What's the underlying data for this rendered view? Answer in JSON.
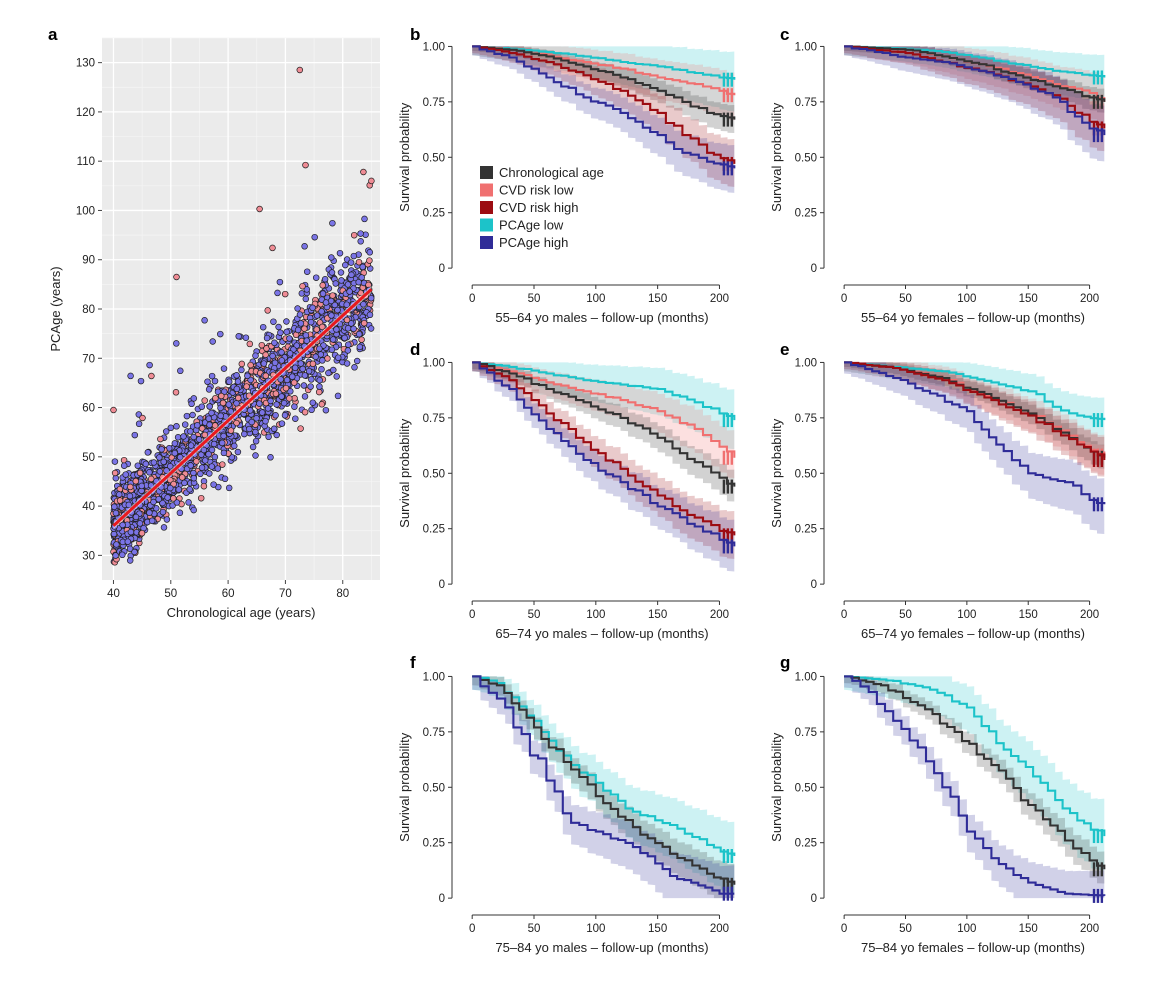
{
  "colors": {
    "chronological": "#333333",
    "cvd_low": "#f07070",
    "cvd_high": "#9c0c12",
    "pcage_low": "#1cc3c9",
    "pcage_high": "#2f2c98",
    "scatter_high": "#7a74e6",
    "scatter_low": "#ef8c95",
    "regression": "#e8191e",
    "panel_bg": "#ebebeb"
  },
  "legend": [
    {
      "key": "chronological",
      "label": "Chronological age"
    },
    {
      "key": "cvd_low",
      "label": "CVD risk low"
    },
    {
      "key": "cvd_high",
      "label": "CVD risk high"
    },
    {
      "key": "pcage_low",
      "label": "PCAge low"
    },
    {
      "key": "pcage_high",
      "label": "PCAge high"
    }
  ],
  "chart_data": [
    {
      "id": "a",
      "letter": "a",
      "type": "scatter",
      "xlabel": "Chronological age (years)",
      "ylabel": "PCAge (years)",
      "xlim": [
        38,
        86.5
      ],
      "ylim": [
        25,
        135
      ],
      "xticks": [
        "40",
        "50",
        "60",
        "70",
        "80"
      ],
      "yticks": [
        "30",
        "40",
        "50",
        "60",
        "70",
        "80",
        "90",
        "100",
        "110",
        "120",
        "130"
      ],
      "regression": {
        "x": [
          40,
          85
        ],
        "y": [
          36,
          84
        ]
      },
      "points": {
        "n": 2200,
        "x_range": [
          40,
          85
        ],
        "trend": {
          "intercept": -6.7,
          "slope": 1.067
        },
        "groups": [
          "scatter_high",
          "scatter_low"
        ],
        "outliers": [
          [
            72.5,
            128.5
          ],
          [
            73.5,
            109.2
          ],
          [
            83.6,
            107.8
          ],
          [
            85,
            106
          ],
          [
            65.5,
            100.3
          ],
          [
            51,
            86.5
          ],
          [
            40,
            59.5
          ]
        ]
      }
    },
    {
      "id": "b",
      "letter": "b",
      "type": "line",
      "xlabel": "55–64 yo males – follow-up (months)",
      "ylabel": "Survival probability",
      "xlim": [
        -5,
        215
      ],
      "ylim": [
        -0.04,
        1.02
      ],
      "xticks": [
        "0",
        "50",
        "100",
        "150",
        "200"
      ],
      "yticks": [
        "0",
        "0.25",
        "0.50",
        "0.75",
        "1.00"
      ],
      "show_legend": true,
      "series": [
        {
          "key": "pcage_low",
          "x": [
            0,
            30,
            60,
            90,
            120,
            150,
            180,
            200,
            212
          ],
          "y": [
            1.0,
            0.99,
            0.975,
            0.955,
            0.93,
            0.91,
            0.88,
            0.86,
            0.85
          ],
          "band": [
            0.04,
            0.15
          ]
        },
        {
          "key": "cvd_low",
          "x": [
            0,
            30,
            60,
            90,
            120,
            150,
            180,
            200,
            212
          ],
          "y": [
            1.0,
            0.985,
            0.96,
            0.93,
            0.9,
            0.86,
            0.83,
            0.8,
            0.78
          ],
          "band": [
            0.04,
            0.12
          ]
        },
        {
          "key": "chronological",
          "x": [
            0,
            30,
            60,
            90,
            120,
            150,
            170,
            190,
            212
          ],
          "y": [
            1.0,
            0.985,
            0.955,
            0.91,
            0.86,
            0.8,
            0.75,
            0.7,
            0.67
          ],
          "band": [
            0.02,
            0.07
          ]
        },
        {
          "key": "cvd_high",
          "x": [
            0,
            30,
            60,
            90,
            120,
            150,
            170,
            190,
            212
          ],
          "y": [
            1.0,
            0.97,
            0.93,
            0.87,
            0.8,
            0.7,
            0.6,
            0.52,
            0.47
          ],
          "band": [
            0.03,
            0.12
          ]
        },
        {
          "key": "pcage_high",
          "x": [
            0,
            30,
            60,
            90,
            120,
            150,
            170,
            190,
            212
          ],
          "y": [
            1.0,
            0.95,
            0.86,
            0.77,
            0.7,
            0.6,
            0.52,
            0.48,
            0.45
          ],
          "band": [
            0.04,
            0.12
          ]
        }
      ]
    },
    {
      "id": "c",
      "letter": "c",
      "type": "line",
      "xlabel": "55–64 yo females – follow-up (months)",
      "ylabel": "Survival probability",
      "xlim": [
        -5,
        215
      ],
      "ylim": [
        -0.04,
        1.02
      ],
      "xticks": [
        "0",
        "50",
        "100",
        "150",
        "200"
      ],
      "yticks": [
        "0",
        "0.25",
        "0.50",
        "0.75",
        "1.00"
      ],
      "show_legend": false,
      "series": [
        {
          "key": "pcage_low",
          "x": [
            0,
            50,
            80,
            110,
            140,
            170,
            200,
            212
          ],
          "y": [
            1.0,
            0.99,
            0.975,
            0.95,
            0.92,
            0.89,
            0.87,
            0.86
          ],
          "band": [
            0.04,
            0.12
          ]
        },
        {
          "key": "cvd_low",
          "x": [
            0,
            50,
            80,
            110,
            140,
            170,
            200,
            212
          ],
          "y": [
            1.0,
            0.985,
            0.955,
            0.92,
            0.88,
            0.83,
            0.79,
            0.75
          ],
          "band": [
            0.04,
            0.12
          ]
        },
        {
          "key": "chronological",
          "x": [
            0,
            50,
            80,
            110,
            140,
            170,
            200,
            212
          ],
          "y": [
            1.0,
            0.985,
            0.955,
            0.92,
            0.87,
            0.82,
            0.77,
            0.75
          ],
          "band": [
            0.02,
            0.06
          ]
        },
        {
          "key": "cvd_high",
          "x": [
            0,
            50,
            80,
            110,
            140,
            170,
            200,
            212
          ],
          "y": [
            1.0,
            0.97,
            0.93,
            0.89,
            0.84,
            0.78,
            0.66,
            0.63
          ],
          "band": [
            0.03,
            0.12
          ]
        },
        {
          "key": "pcage_high",
          "x": [
            0,
            50,
            80,
            110,
            140,
            170,
            200,
            212
          ],
          "y": [
            1.0,
            0.95,
            0.93,
            0.89,
            0.84,
            0.77,
            0.63,
            0.6
          ],
          "band": [
            0.04,
            0.14
          ]
        }
      ]
    },
    {
      "id": "d",
      "letter": "d",
      "type": "line",
      "xlabel": "65–74 yo males – follow-up (months)",
      "ylabel": "Survival probability",
      "xlim": [
        -5,
        215
      ],
      "ylim": [
        -0.04,
        1.02
      ],
      "xticks": [
        "0",
        "50",
        "100",
        "150",
        "200"
      ],
      "yticks": [
        "0",
        "0.25",
        "0.50",
        "0.75",
        "1.00"
      ],
      "show_legend": false,
      "series": [
        {
          "key": "pcage_low",
          "x": [
            0,
            30,
            60,
            90,
            120,
            150,
            180,
            200,
            212
          ],
          "y": [
            1.0,
            0.98,
            0.95,
            0.92,
            0.9,
            0.88,
            0.82,
            0.77,
            0.74
          ],
          "band": [
            0.04,
            0.15
          ]
        },
        {
          "key": "cvd_low",
          "x": [
            0,
            30,
            60,
            90,
            120,
            150,
            180,
            200,
            212
          ],
          "y": [
            1.0,
            0.96,
            0.91,
            0.87,
            0.83,
            0.78,
            0.7,
            0.62,
            0.57
          ],
          "band": [
            0.04,
            0.12
          ]
        },
        {
          "key": "chronological",
          "x": [
            0,
            30,
            60,
            90,
            120,
            150,
            180,
            200,
            212
          ],
          "y": [
            1.0,
            0.95,
            0.88,
            0.82,
            0.75,
            0.66,
            0.55,
            0.48,
            0.44
          ],
          "band": [
            0.03,
            0.08
          ]
        },
        {
          "key": "cvd_high",
          "x": [
            0,
            30,
            60,
            90,
            120,
            150,
            180,
            200,
            212
          ],
          "y": [
            1.0,
            0.92,
            0.77,
            0.64,
            0.52,
            0.4,
            0.3,
            0.24,
            0.22
          ],
          "band": [
            0.04,
            0.12
          ]
        },
        {
          "key": "pcage_high",
          "x": [
            0,
            30,
            60,
            90,
            120,
            150,
            180,
            200,
            212
          ],
          "y": [
            1.0,
            0.88,
            0.7,
            0.56,
            0.46,
            0.35,
            0.26,
            0.2,
            0.17
          ],
          "band": [
            0.04,
            0.13
          ]
        }
      ]
    },
    {
      "id": "e",
      "letter": "e",
      "type": "line",
      "xlabel": "65–74 yo females – follow-up (months)",
      "ylabel": "Survival probability",
      "xlim": [
        -5,
        215
      ],
      "ylim": [
        -0.04,
        1.02
      ],
      "xticks": [
        "0",
        "50",
        "100",
        "150",
        "200"
      ],
      "yticks": [
        "0",
        "0.25",
        "0.50",
        "0.75",
        "1.00"
      ],
      "show_legend": false,
      "series": [
        {
          "key": "pcage_low",
          "x": [
            0,
            40,
            80,
            120,
            150,
            170,
            190,
            212
          ],
          "y": [
            1.0,
            0.98,
            0.96,
            0.91,
            0.87,
            0.8,
            0.76,
            0.74
          ],
          "band": [
            0.04,
            0.12
          ]
        },
        {
          "key": "cvd_low",
          "x": [
            0,
            40,
            80,
            120,
            150,
            170,
            190,
            212
          ],
          "y": [
            1.0,
            0.975,
            0.93,
            0.84,
            0.77,
            0.71,
            0.64,
            0.58
          ],
          "band": [
            0.04,
            0.1
          ]
        },
        {
          "key": "chronological",
          "x": [
            0,
            40,
            80,
            120,
            150,
            170,
            190,
            212
          ],
          "y": [
            1.0,
            0.975,
            0.93,
            0.84,
            0.77,
            0.7,
            0.63,
            0.57
          ],
          "band": [
            0.02,
            0.06
          ]
        },
        {
          "key": "cvd_high",
          "x": [
            0,
            40,
            80,
            120,
            150,
            170,
            190,
            212
          ],
          "y": [
            1.0,
            0.975,
            0.92,
            0.83,
            0.76,
            0.69,
            0.63,
            0.56
          ],
          "band": [
            0.03,
            0.1
          ]
        },
        {
          "key": "pcage_high",
          "x": [
            0,
            40,
            70,
            100,
            130,
            150,
            180,
            200,
            212
          ],
          "y": [
            1.0,
            0.93,
            0.86,
            0.78,
            0.6,
            0.5,
            0.46,
            0.38,
            0.36
          ],
          "band": [
            0.05,
            0.14
          ]
        }
      ]
    },
    {
      "id": "f",
      "letter": "f",
      "type": "line",
      "xlabel": "75–84 yo males – follow-up (months)",
      "ylabel": "Survival probability",
      "xlim": [
        -5,
        215
      ],
      "ylim": [
        -0.04,
        1.02
      ],
      "xticks": [
        "0",
        "50",
        "100",
        "150",
        "200"
      ],
      "yticks": [
        "0",
        "0.25",
        "0.50",
        "0.75",
        "1.00"
      ],
      "show_legend": false,
      "series": [
        {
          "key": "pcage_low",
          "x": [
            0,
            20,
            50,
            80,
            100,
            130,
            160,
            190,
            212
          ],
          "y": [
            1.0,
            0.97,
            0.8,
            0.6,
            0.52,
            0.39,
            0.33,
            0.24,
            0.19
          ],
          "band": [
            0.06,
            0.18
          ]
        },
        {
          "key": "chronological",
          "x": [
            0,
            20,
            50,
            80,
            100,
            130,
            160,
            190,
            212
          ],
          "y": [
            1.0,
            0.96,
            0.77,
            0.58,
            0.46,
            0.32,
            0.2,
            0.11,
            0.06
          ],
          "band": [
            0.04,
            0.1
          ]
        },
        {
          "key": "pcage_high",
          "x": [
            0,
            20,
            40,
            60,
            80,
            100,
            130,
            160,
            200,
            212
          ],
          "y": [
            1.0,
            0.9,
            0.74,
            0.53,
            0.34,
            0.3,
            0.23,
            0.1,
            0.02,
            0.02
          ],
          "band": [
            0.06,
            0.16
          ]
        }
      ]
    },
    {
      "id": "g",
      "letter": "g",
      "type": "line",
      "xlabel": "75–84 yo females – follow-up (months)",
      "ylabel": "Survival probability",
      "xlim": [
        -5,
        215
      ],
      "ylim": [
        -0.04,
        1.02
      ],
      "xticks": [
        "0",
        "50",
        "100",
        "150",
        "200"
      ],
      "yticks": [
        "0",
        "0.25",
        "0.50",
        "0.75",
        "1.00"
      ],
      "show_legend": false,
      "series": [
        {
          "key": "pcage_low",
          "x": [
            0,
            40,
            70,
            100,
            130,
            160,
            190,
            212
          ],
          "y": [
            1.0,
            0.98,
            0.94,
            0.86,
            0.67,
            0.52,
            0.35,
            0.28
          ],
          "band": [
            0.06,
            0.18
          ]
        },
        {
          "key": "chronological",
          "x": [
            0,
            30,
            60,
            90,
            120,
            150,
            180,
            200,
            212
          ],
          "y": [
            1.0,
            0.96,
            0.87,
            0.75,
            0.6,
            0.42,
            0.26,
            0.17,
            0.13
          ],
          "band": [
            0.03,
            0.08
          ]
        },
        {
          "key": "pcage_high",
          "x": [
            0,
            20,
            40,
            60,
            80,
            100,
            120,
            150,
            180,
            212
          ],
          "y": [
            1.0,
            0.93,
            0.8,
            0.68,
            0.5,
            0.3,
            0.18,
            0.07,
            0.02,
            0.01
          ],
          "band": [
            0.05,
            0.14
          ]
        }
      ]
    }
  ]
}
